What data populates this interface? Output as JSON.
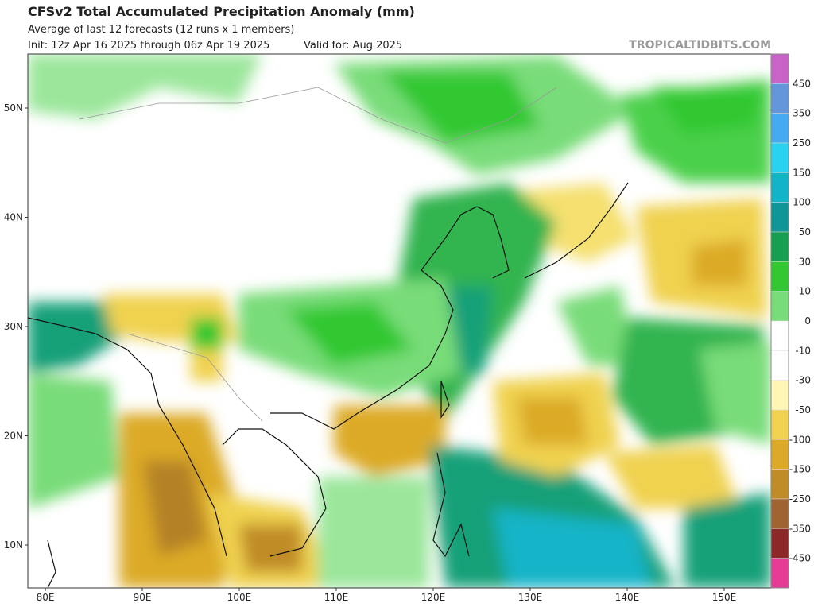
{
  "header": {
    "title": "CFSv2 Total Accumulated Precipitation Anomaly (mm)",
    "subtitle": "Average of last 12 forecasts (12 runs x 1 members)",
    "init": "Init: 12z Apr 16 2025 through 06z Apr 19 2025",
    "valid": "Valid for: Aug 2025",
    "watermark": "TROPICALTIDBITS.COM"
  },
  "map": {
    "lat_labels": [
      "50N",
      "40N",
      "30N",
      "20N",
      "10N"
    ],
    "lon_labels": [
      "80E",
      "90E",
      "100E",
      "110E",
      "120E",
      "130E",
      "140E",
      "150E"
    ]
  },
  "colorbar": {
    "labels": [
      450,
      350,
      250,
      150,
      100,
      50,
      30,
      10,
      0,
      -10,
      -30,
      -50,
      -100,
      -150,
      -250,
      -350,
      -450
    ],
    "colors": [
      "#c864c8",
      "#6496dc",
      "#46aaf0",
      "#28d2f0",
      "#14b4c8",
      "#0f9696",
      "#14a050",
      "#32c832",
      "#78dc78",
      "#ffffff",
      "#ffffff",
      "#fff5b4",
      "#f0d250",
      "#dcaa28",
      "#c08c28",
      "#a06432",
      "#8c2828",
      "#e63c96"
    ]
  }
}
